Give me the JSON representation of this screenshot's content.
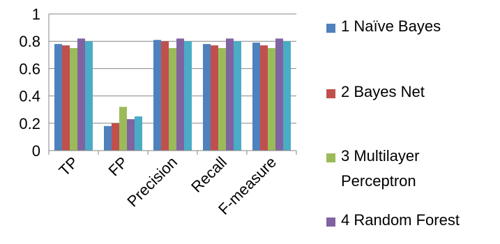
{
  "chart_data": {
    "type": "bar",
    "categories": [
      "TP",
      "FP",
      "Precision",
      "Recall",
      "F-measure"
    ],
    "series": [
      {
        "name": "1 Naïve Bayes",
        "color": "#4F81BD",
        "values": [
          0.78,
          0.18,
          0.81,
          0.78,
          0.79
        ]
      },
      {
        "name": "2 Bayes Net",
        "color": "#C0504D",
        "values": [
          0.77,
          0.2,
          0.8,
          0.77,
          0.77
        ]
      },
      {
        "name": "3 Multilayer Perceptron",
        "legend_lines": [
          "3 Multilayer",
          "Perceptron"
        ],
        "color": "#9BBB59",
        "values": [
          0.75,
          0.32,
          0.75,
          0.75,
          0.75
        ]
      },
      {
        "name": "4 Random Forest",
        "color": "#8064A2",
        "values": [
          0.82,
          0.23,
          0.82,
          0.82,
          0.82
        ]
      },
      {
        "color": "#4BACC6",
        "values": [
          0.8,
          0.25,
          0.8,
          0.8,
          0.8
        ]
      }
    ],
    "ylim": [
      0,
      1
    ],
    "yticks": [
      "0",
      "0.2",
      "0.4",
      "0.6",
      "0.8",
      "1"
    ],
    "title": "",
    "xlabel": "",
    "ylabel": "",
    "grid": "horizontal",
    "legend_position": "right"
  }
}
